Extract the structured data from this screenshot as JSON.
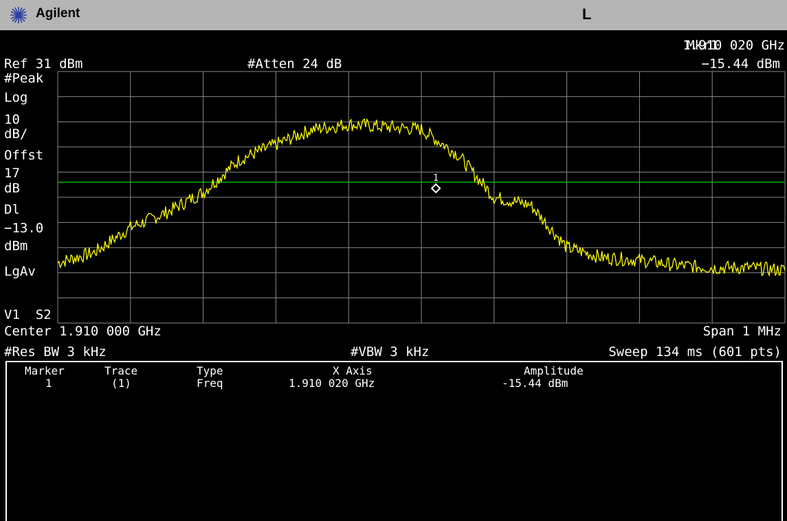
{
  "title_bar": {
    "brand": "Agilent",
    "mode_indicator": "L"
  },
  "header": {
    "marker_label": "Mkr1",
    "marker_freq": "1.910 020 GHz",
    "marker_amplitude": "−15.44 dBm",
    "ref_level": "Ref 31 dBm",
    "attenuation": "#Atten 24 dB"
  },
  "left_annotations": {
    "detector": "#Peak",
    "scale_type": "Log",
    "scale_value": "10",
    "scale_unit": "dB/",
    "offset_label": "Offst",
    "offset_value": "17",
    "offset_unit": "dB",
    "display_line_label": "Dl",
    "display_line_value": "−13.0",
    "display_line_unit": "dBm",
    "average_type": "LgAv",
    "trigger_info": "V1  S2"
  },
  "footer": {
    "center": "Center 1.910 000 GHz",
    "span": "Span 1 MHz",
    "rbw": "#Res BW 3 kHz",
    "vbw": "#VBW 3 kHz",
    "sweep": "Sweep 134 ms (601 pts)"
  },
  "marker_table": {
    "headers": [
      "Marker",
      "Trace",
      "Type",
      "X Axis",
      "Amplitude"
    ],
    "rows": [
      {
        "marker": "1",
        "trace": "(1)",
        "type": "Freq",
        "x_axis": "1.910 020 GHz",
        "amplitude": "-15.44 dBm"
      }
    ]
  },
  "display_marker_number": "1",
  "colors": {
    "trace": "#ffff00",
    "display_line": "#00c000",
    "marker": "#ffffff",
    "grid": "#888888"
  },
  "chart_data": {
    "type": "line",
    "x_unit": "GHz",
    "y_unit": "dBm",
    "xlim": [
      1.9095,
      1.9105
    ],
    "ylim": [
      -69,
      31
    ],
    "display_line": -13.0,
    "marker": {
      "x": 1.91002,
      "y": -15.44
    },
    "series": [
      {
        "x": [
          1.9095,
          1.90955,
          1.9096,
          1.90965,
          1.9097,
          1.90975,
          1.9098,
          1.90985,
          1.9099,
          1.90995,
          1.91,
          1.91005,
          1.9101,
          1.91015,
          1.9102,
          1.91025,
          1.9103,
          1.91035,
          1.9104,
          1.91045,
          1.9105
        ],
        "y": [
          -45,
          -41,
          -31,
          -25,
          -17,
          -4,
          2,
          8,
          10,
          9,
          8,
          -2,
          -19,
          -22,
          -39,
          -43,
          -44,
          -46,
          -47,
          -47,
          -48
        ]
      }
    ]
  }
}
